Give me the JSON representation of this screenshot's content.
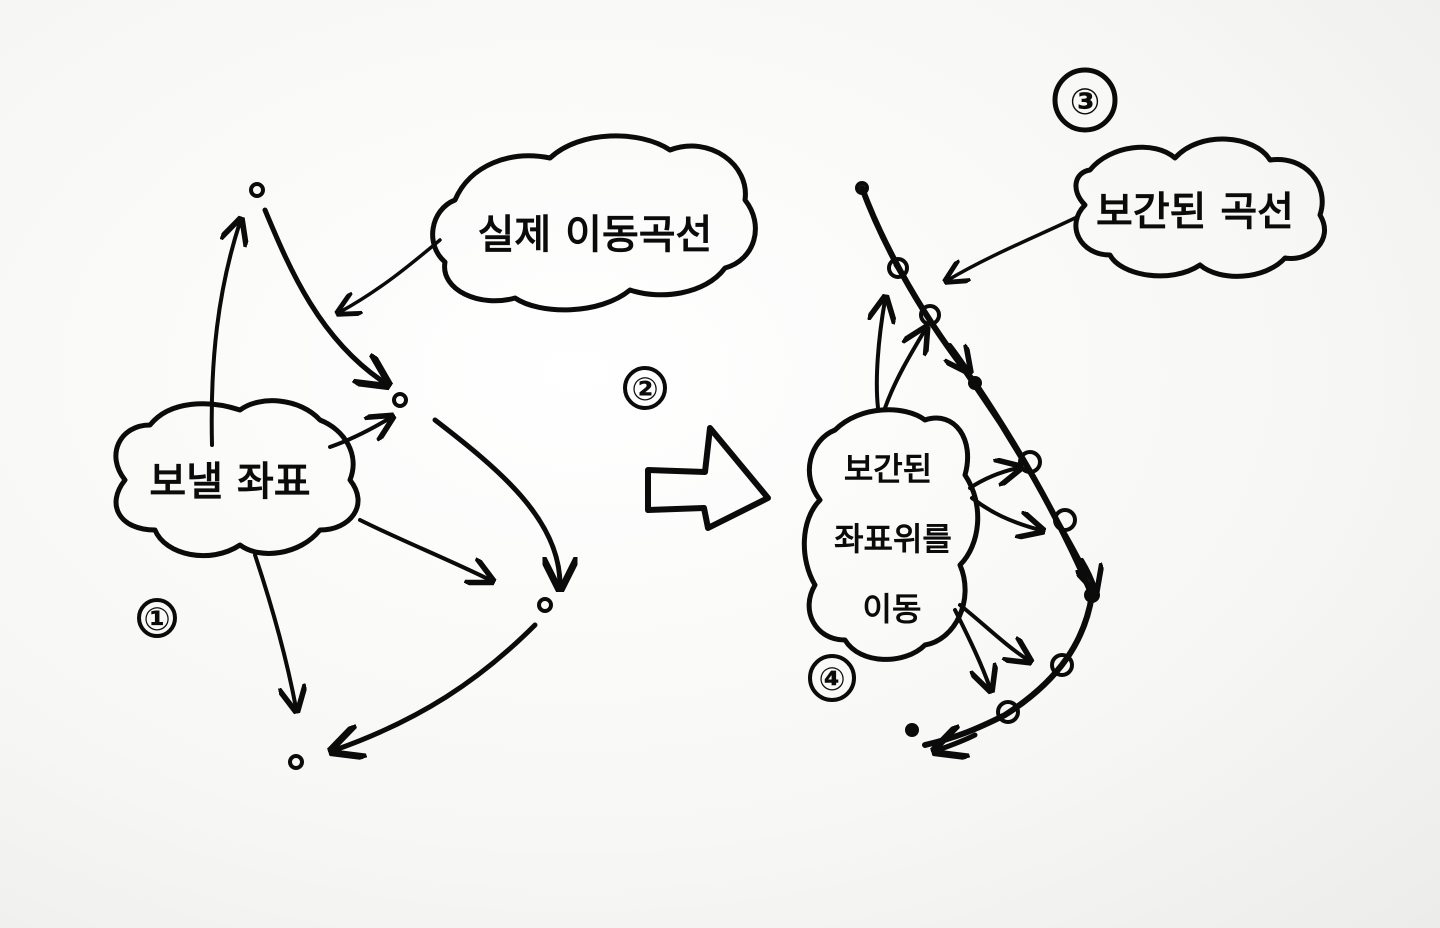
{
  "diagram": {
    "left": {
      "cloud_send_label": "보낼 좌표",
      "cloud_actual_label": "실제 이동곡선",
      "step_marker": "①"
    },
    "middle": {
      "step_marker": "②"
    },
    "right": {
      "cloud_corrected_label": "보간된 곡선",
      "cloud_move_line1": "보간된",
      "cloud_move_line2": "좌표위를",
      "cloud_move_line3": "이동",
      "step_marker_top": "③",
      "step_marker_bottom": "④"
    }
  },
  "colors": {
    "ink": "#0b0b0b",
    "paper": "#f7f7f5"
  }
}
